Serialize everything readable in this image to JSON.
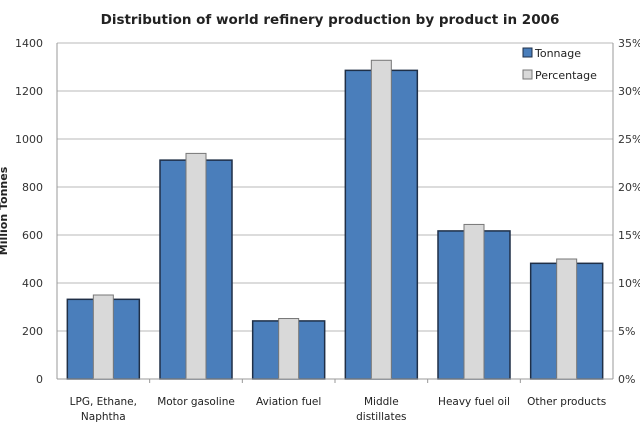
{
  "chart_data": {
    "type": "bar",
    "title": "Distribution of world refinery production by product in 2006",
    "ylabel": "Million Tonnes",
    "y2label": "",
    "categories": [
      [
        "LPG, Ethane,",
        "Naphtha"
      ],
      [
        "Motor gasoline"
      ],
      [
        "Aviation fuel"
      ],
      [
        "Middle",
        "distillates"
      ],
      [
        "Heavy fuel oil"
      ],
      [
        "Other products"
      ]
    ],
    "series": [
      {
        "name": "Tonnage",
        "axis": "left",
        "color": "#4a7ebb",
        "values": [
          332,
          912,
          242,
          1286,
          617,
          482
        ]
      },
      {
        "name": "Percentage",
        "axis": "right",
        "color": "#d9d9d9",
        "values": [
          8.75,
          23.5,
          6.3,
          33.2,
          16.1,
          12.5
        ]
      }
    ],
    "ylim": [
      0,
      1400
    ],
    "yticks": [
      "0",
      "200",
      "400",
      "600",
      "800",
      "1000",
      "1200",
      "1400"
    ],
    "y2lim": [
      0,
      35
    ],
    "y2ticks": [
      "0%",
      "5%",
      "10%",
      "15%",
      "20%",
      "25%",
      "30%",
      "35%"
    ],
    "grid": true,
    "legend": "top-right"
  }
}
